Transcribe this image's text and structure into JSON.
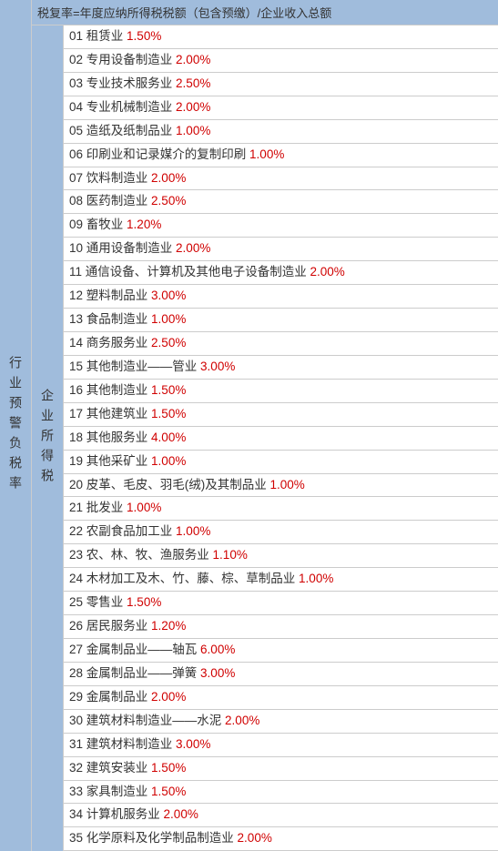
{
  "colors": {
    "sidebar_bg": "#a0bcdc",
    "rate_color": "#d00000",
    "border_color": "#cccccc",
    "text_color": "#333333"
  },
  "left_label": "行业预警负税率",
  "mid_label": "企业所得税",
  "header": "税复率=年度应纳所得税税额（包含预缴）/企业收入总额",
  "rows": [
    {
      "num": "01",
      "name": "租赁业",
      "rate": "1.50%"
    },
    {
      "num": "02",
      "name": "专用设备制造业",
      "rate": "2.00%"
    },
    {
      "num": "03",
      "name": "专业技术服务业",
      "rate": "2.50%"
    },
    {
      "num": "04",
      "name": "专业机械制造业",
      "rate": "2.00%"
    },
    {
      "num": "05",
      "name": "造纸及纸制品业",
      "rate": "1.00%"
    },
    {
      "num": "06",
      "name": "印刷业和记录媒介的复制印刷",
      "rate": "1.00%"
    },
    {
      "num": "07",
      "name": "饮料制造业",
      "rate": "2.00%"
    },
    {
      "num": "08",
      "name": "医药制造业",
      "rate": "2.50%"
    },
    {
      "num": "09",
      "name": "畜牧业",
      "rate": "1.20%"
    },
    {
      "num": "10",
      "name": "通用设备制造业",
      "rate": "2.00%"
    },
    {
      "num": "11",
      "name": "通信设备、计算机及其他电子设备制造业",
      "rate": "2.00%"
    },
    {
      "num": "12",
      "name": "塑料制品业",
      "rate": "3.00%"
    },
    {
      "num": "13",
      "name": "食品制造业",
      "rate": "1.00%"
    },
    {
      "num": "14",
      "name": "商务服务业",
      "rate": "2.50%"
    },
    {
      "num": "15",
      "name": "其他制造业——管业",
      "rate": "3.00%"
    },
    {
      "num": "16",
      "name": "其他制造业",
      "rate": "1.50%"
    },
    {
      "num": "17",
      "name": "其他建筑业",
      "rate": "1.50%"
    },
    {
      "num": "18",
      "name": "其他服务业",
      "rate": "4.00%"
    },
    {
      "num": "19",
      "name": "其他采矿业",
      "rate": "1.00%"
    },
    {
      "num": "20",
      "name": "皮革、毛皮、羽毛(绒)及其制品业",
      "rate": "1.00%"
    },
    {
      "num": "21",
      "name": "批发业",
      "rate": "1.00%"
    },
    {
      "num": "22",
      "name": "农副食品加工业",
      "rate": "1.00%"
    },
    {
      "num": "23",
      "name": "农、林、牧、渔服务业",
      "rate": "1.10%"
    },
    {
      "num": "24",
      "name": "木材加工及木、竹、藤、棕、草制品业",
      "rate": "1.00%"
    },
    {
      "num": "25",
      "name": "零售业",
      "rate": "1.50%"
    },
    {
      "num": "26",
      "name": "居民服务业",
      "rate": "1.20%"
    },
    {
      "num": "27",
      "name": "金属制品业——轴瓦",
      "rate": "6.00%"
    },
    {
      "num": "28",
      "name": "金属制品业——弹簧",
      "rate": "3.00%"
    },
    {
      "num": "29",
      "name": "金属制品业",
      "rate": "2.00%"
    },
    {
      "num": "30",
      "name": "建筑材料制造业——水泥",
      "rate": "2.00%"
    },
    {
      "num": "31",
      "name": "建筑材料制造业",
      "rate": "3.00%"
    },
    {
      "num": "32",
      "name": "建筑安装业",
      "rate": "1.50%"
    },
    {
      "num": "33",
      "name": "家具制造业",
      "rate": "1.50%"
    },
    {
      "num": "34",
      "name": "计算机服务业",
      "rate": "2.00%"
    },
    {
      "num": "35",
      "name": "化学原料及化学制品制造业",
      "rate": "2.00%"
    }
  ]
}
